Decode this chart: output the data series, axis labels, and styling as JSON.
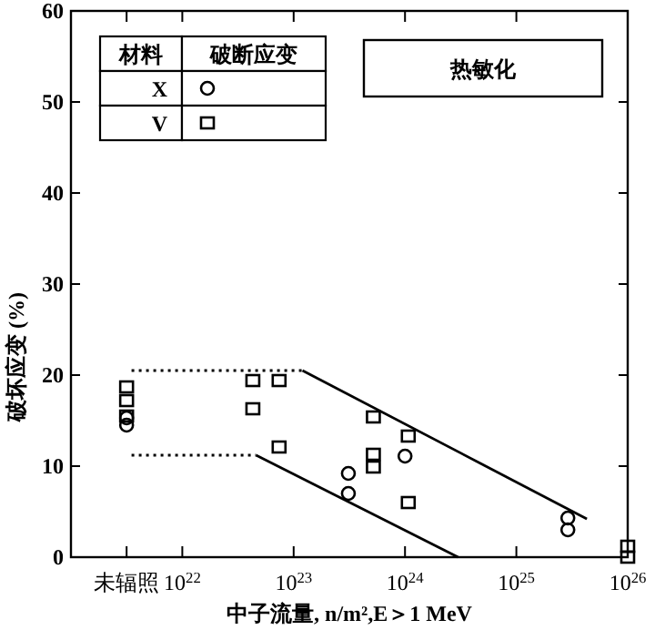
{
  "chart_data": {
    "type": "scatter",
    "xlabel": "中子流量, n/m²,E＞1 MeV",
    "ylabel": "破坏应变 (%)",
    "log": "x",
    "xlim": [
      1e+21,
      1e+26
    ],
    "ylim": [
      0,
      60
    ],
    "xticks": [
      {
        "value": 3.16e+21,
        "label": "未辐照"
      },
      {
        "value": 1e+22,
        "label": "10$^{22}$"
      },
      {
        "value": 1e+23,
        "label": "10$^{23}$"
      },
      {
        "value": 1e+24,
        "label": "10$^{24}$"
      },
      {
        "value": 1e+25,
        "label": "10$^{25}$"
      },
      {
        "value": 1e+26,
        "label": "10$^{26}$"
      }
    ],
    "yticks": [
      0,
      10,
      20,
      30,
      40,
      50,
      60
    ],
    "grid": false,
    "legend": "top left",
    "legend_title": "材料",
    "annotations": [
      "破断应变",
      "热敏化"
    ],
    "series": [
      {
        "name": "X",
        "marker": "circle",
        "color": "#000000",
        "x": [
          3.16e+21,
          3.16e+21,
          3.1e+23,
          3.1e+23,
          1e+24,
          2.9e+25,
          2.9e+25
        ],
        "values": [
          14.5,
          15.3,
          9.2,
          7.0,
          11.1,
          4.3,
          3.0
        ]
      },
      {
        "name": "V",
        "marker": "square",
        "color": "#000000",
        "x": [
          3.16e+21,
          3.16e+21,
          3.16e+21,
          4.3e+22,
          4.3e+22,
          7.4e+22,
          7.4e+22,
          5.2e+23,
          5.2e+23,
          5.2e+23,
          1.07e+24,
          1.07e+24,
          1e+26,
          1e+26
        ],
        "values": [
          18.7,
          17.2,
          15.5,
          19.4,
          16.3,
          19.4,
          12.1,
          15.4,
          11.3,
          9.9,
          13.3,
          6.0,
          1.2,
          0
        ]
      },
      {
        "type": "line",
        "line_style": "dotted",
        "color": "#000000",
        "x": [
          3.5e+21,
          1.2e+23
        ],
        "values": [
          20.5,
          20.5
        ]
      },
      {
        "type": "line",
        "line_style": "solid",
        "color": "#000000",
        "x": [
          1.2e+23,
          4.3e+25
        ],
        "values": [
          20.5,
          4.2
        ]
      },
      {
        "type": "line",
        "line_style": "dotted",
        "color": "#000000",
        "x": [
          3.5e+21,
          4.6e+22
        ],
        "values": [
          11.2,
          11.2
        ]
      },
      {
        "type": "line",
        "line_style": "solid",
        "color": "#000000",
        "x": [
          4.6e+22,
          3e+24
        ],
        "values": [
          11.2,
          0
        ]
      }
    ]
  }
}
